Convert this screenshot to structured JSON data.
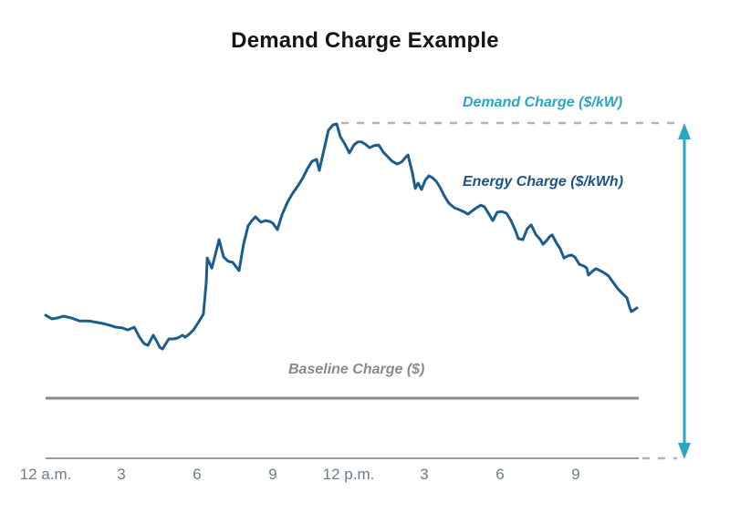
{
  "chart_data": {
    "type": "line",
    "title": "Demand Charge Example",
    "xlabel": "",
    "ylabel": "",
    "x_axis": {
      "unit": "hour of day",
      "range": [
        0,
        24
      ],
      "tick_hours": [
        0,
        3,
        6,
        9,
        12,
        15,
        18,
        21
      ]
    },
    "x_ticks": [
      "12 a.m.",
      "3",
      "6",
      "9",
      "12 p.m.",
      "3",
      "6",
      "9"
    ],
    "y_axis": {
      "visible": false,
      "unit": "load (% of daily peak)",
      "range": [
        0,
        105
      ]
    },
    "grid": false,
    "legend_position": "none",
    "series": [
      {
        "name": "Hourly electric load",
        "color": "#1E5C8C",
        "points": [
          [
            0,
            42.8
          ],
          [
            0.25,
            41.7
          ],
          [
            0.47,
            42
          ],
          [
            0.72,
            42.5
          ],
          [
            1.01,
            42
          ],
          [
            1.34,
            41.1
          ],
          [
            1.7,
            41.1
          ],
          [
            2.06,
            40.6
          ],
          [
            2.28,
            40.3
          ],
          [
            2.53,
            39.8
          ],
          [
            2.78,
            39.2
          ],
          [
            3.04,
            39
          ],
          [
            3.25,
            38.4
          ],
          [
            3.51,
            39.2
          ],
          [
            3.72,
            36.2
          ],
          [
            3.9,
            34.3
          ],
          [
            4.05,
            33.8
          ],
          [
            4.26,
            36.8
          ],
          [
            4.41,
            34.9
          ],
          [
            4.52,
            33.2
          ],
          [
            4.63,
            32.7
          ],
          [
            4.88,
            35.7
          ],
          [
            5.06,
            35.7
          ],
          [
            5.24,
            36
          ],
          [
            5.42,
            36.8
          ],
          [
            5.53,
            36.2
          ],
          [
            5.71,
            37.3
          ],
          [
            5.86,
            38.4
          ],
          [
            6.07,
            40.9
          ],
          [
            6.25,
            43.1
          ],
          [
            6.36,
            52.6
          ],
          [
            6.4,
            59.9
          ],
          [
            6.58,
            56.9
          ],
          [
            6.72,
            60.8
          ],
          [
            6.87,
            65.4
          ],
          [
            7.05,
            60.2
          ],
          [
            7.23,
            58.9
          ],
          [
            7.41,
            58.6
          ],
          [
            7.52,
            57.5
          ],
          [
            7.66,
            56.1
          ],
          [
            7.84,
            64
          ],
          [
            8.02,
            69.5
          ],
          [
            8.17,
            71.1
          ],
          [
            8.31,
            72.2
          ],
          [
            8.53,
            70.6
          ],
          [
            8.71,
            71.1
          ],
          [
            8.89,
            70.8
          ],
          [
            9,
            70.3
          ],
          [
            9.18,
            68.4
          ],
          [
            9.36,
            72.8
          ],
          [
            9.58,
            76.6
          ],
          [
            9.76,
            79
          ],
          [
            10.01,
            81.7
          ],
          [
            10.19,
            83.9
          ],
          [
            10.37,
            86.6
          ],
          [
            10.55,
            88.8
          ],
          [
            10.73,
            89.4
          ],
          [
            10.84,
            86.1
          ],
          [
            11.02,
            92.1
          ],
          [
            11.2,
            98.1
          ],
          [
            11.38,
            99.7
          ],
          [
            11.53,
            100
          ],
          [
            11.67,
            96.2
          ],
          [
            11.85,
            94
          ],
          [
            12.03,
            91.3
          ],
          [
            12.21,
            93.7
          ],
          [
            12.36,
            94.6
          ],
          [
            12.51,
            94.6
          ],
          [
            12.65,
            94
          ],
          [
            12.83,
            92.9
          ],
          [
            13.01,
            93.5
          ],
          [
            13.19,
            93.7
          ],
          [
            13.37,
            91.6
          ],
          [
            13.55,
            90.2
          ],
          [
            13.73,
            88.8
          ],
          [
            13.92,
            88
          ],
          [
            14.1,
            88.6
          ],
          [
            14.28,
            90.2
          ],
          [
            14.35,
            90.7
          ],
          [
            14.53,
            85.3
          ],
          [
            14.64,
            80.7
          ],
          [
            14.75,
            82.3
          ],
          [
            14.89,
            80.4
          ],
          [
            15.03,
            83.1
          ],
          [
            15.18,
            84.5
          ],
          [
            15.32,
            83.9
          ],
          [
            15.47,
            82.8
          ],
          [
            15.61,
            81.2
          ],
          [
            15.79,
            78.5
          ],
          [
            15.97,
            76.3
          ],
          [
            16.19,
            74.9
          ],
          [
            16.37,
            74.4
          ],
          [
            16.55,
            73.8
          ],
          [
            16.73,
            73
          ],
          [
            16.91,
            74.1
          ],
          [
            17.06,
            74.9
          ],
          [
            17.24,
            75.7
          ],
          [
            17.38,
            75.2
          ],
          [
            17.56,
            73
          ],
          [
            17.71,
            71.1
          ],
          [
            17.89,
            73.6
          ],
          [
            18.07,
            73.8
          ],
          [
            18.25,
            73.3
          ],
          [
            18.43,
            71.1
          ],
          [
            18.61,
            68.1
          ],
          [
            18.72,
            65.7
          ],
          [
            18.9,
            65.4
          ],
          [
            19.08,
            68.7
          ],
          [
            19.23,
            69.8
          ],
          [
            19.41,
            67
          ],
          [
            19.59,
            65.4
          ],
          [
            19.7,
            64
          ],
          [
            19.84,
            65.1
          ],
          [
            19.95,
            66.2
          ],
          [
            20.06,
            66.8
          ],
          [
            20.24,
            64.3
          ],
          [
            20.38,
            62.7
          ],
          [
            20.53,
            59.9
          ],
          [
            20.67,
            60.5
          ],
          [
            20.82,
            60.8
          ],
          [
            20.96,
            60.2
          ],
          [
            21.14,
            58
          ],
          [
            21.32,
            57.5
          ],
          [
            21.43,
            56.9
          ],
          [
            21.5,
            54.8
          ],
          [
            21.65,
            55.9
          ],
          [
            21.79,
            56.7
          ],
          [
            21.97,
            56.1
          ],
          [
            22.15,
            55.3
          ],
          [
            22.3,
            54.5
          ],
          [
            22.48,
            52.6
          ],
          [
            22.66,
            50.7
          ],
          [
            22.84,
            49.3
          ],
          [
            23.02,
            48
          ],
          [
            23.13,
            45.2
          ],
          [
            23.2,
            43.9
          ],
          [
            23.31,
            44.4
          ],
          [
            23.42,
            45
          ]
        ]
      }
    ],
    "annotations": [
      {
        "text": "Demand Charge ($/kW)",
        "color": "#2AA6C4"
      },
      {
        "text": "Energy Charge ($/kWh)",
        "color": "#1B5480"
      },
      {
        "text": "Baseline Charge ($)",
        "color": "#8A8A8A"
      }
    ],
    "reference_lines": [
      {
        "name": "peak-demand-level",
        "value": 100,
        "style": "dashed",
        "color": "#B3B3B3"
      },
      {
        "name": "baseline-charge-level",
        "value": 18,
        "style": "solid",
        "color": "#8A8A8A"
      }
    ],
    "arrow": {
      "name": "demand-range-arrow",
      "from_value": 0,
      "to_value": 100,
      "color": "#2AA6C4"
    }
  },
  "colors": {
    "title_text": "#151515",
    "tick_text": "#6B7C8A",
    "axis_line": "#9A9A9A",
    "dash_line": "#B3B3B3"
  }
}
